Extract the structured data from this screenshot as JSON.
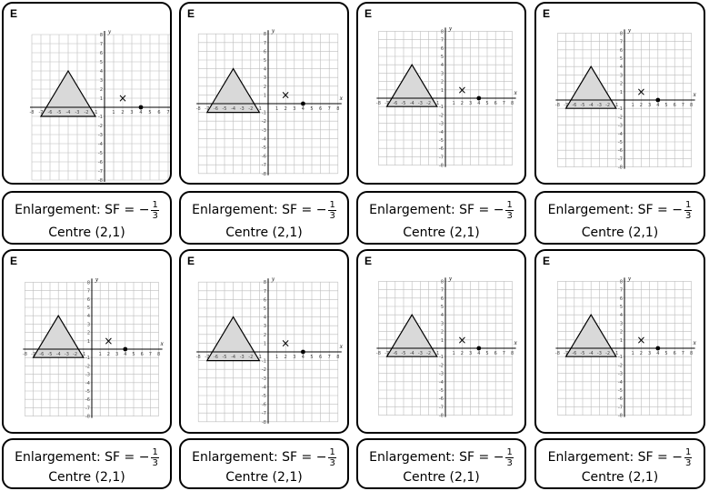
{
  "cards": [
    {
      "letter": "E",
      "transformation": "Enlargement: SF = −",
      "sf_numerator": "1",
      "sf_denominator": "3",
      "centre": "Centre (2,1)"
    },
    {
      "letter": "E",
      "transformation": "Enlargement: SF = −",
      "sf_numerator": "1",
      "sf_denominator": "3",
      "centre": "Centre (2,1)"
    },
    {
      "letter": "E",
      "transformation": "Enlargement: SF = −",
      "sf_numerator": "1",
      "sf_denominator": "3",
      "centre": "Centre (2,1)"
    },
    {
      "letter": "E",
      "transformation": "Enlargement: SF = −",
      "sf_numerator": "1",
      "sf_denominator": "3",
      "centre": "Centre (2,1)"
    },
    {
      "letter": "E",
      "transformation": "Enlargement: SF = −",
      "sf_numerator": "1",
      "sf_denominator": "3",
      "centre": "Centre (2,1)"
    },
    {
      "letter": "E",
      "transformation": "Enlargement: SF = −",
      "sf_numerator": "1",
      "sf_denominator": "3",
      "centre": "Centre (2,1)"
    },
    {
      "letter": "E",
      "transformation": "Enlargement: SF = −",
      "sf_numerator": "1",
      "sf_denominator": "3",
      "centre": "Centre (2,1)"
    },
    {
      "letter": "E",
      "transformation": "Enlargement: SF = −",
      "sf_numerator": "1",
      "sf_denominator": "3",
      "centre": "Centre (2,1)"
    }
  ],
  "graph": {
    "x_axis_label": "x",
    "y_axis_label": "y",
    "x_range": [
      -8,
      8
    ],
    "y_range": [
      -8,
      8
    ],
    "x_tick_labels": [
      "-8",
      "-7",
      "-6",
      "-5",
      "-4",
      "-3",
      "-2",
      "-1",
      "1",
      "2",
      "3",
      "4",
      "5",
      "6",
      "7",
      "8"
    ],
    "y_tick_labels": [
      "8",
      "7",
      "6",
      "5",
      "4",
      "3",
      "2",
      "1",
      "-1",
      "-2",
      "-3",
      "-4",
      "-5",
      "-6",
      "-7",
      "-8"
    ],
    "triangle_vertices": [
      [
        -7,
        -1
      ],
      [
        -1,
        -1
      ],
      [
        -4,
        4
      ]
    ],
    "centre_marker": {
      "x": 2,
      "y": 1,
      "symbol": "×"
    },
    "dot_marker": {
      "x": 4,
      "y": 0
    },
    "shape_fill": "#d9d9d9",
    "grid_color": "#bdbdbd",
    "axis_color": "#000000"
  }
}
